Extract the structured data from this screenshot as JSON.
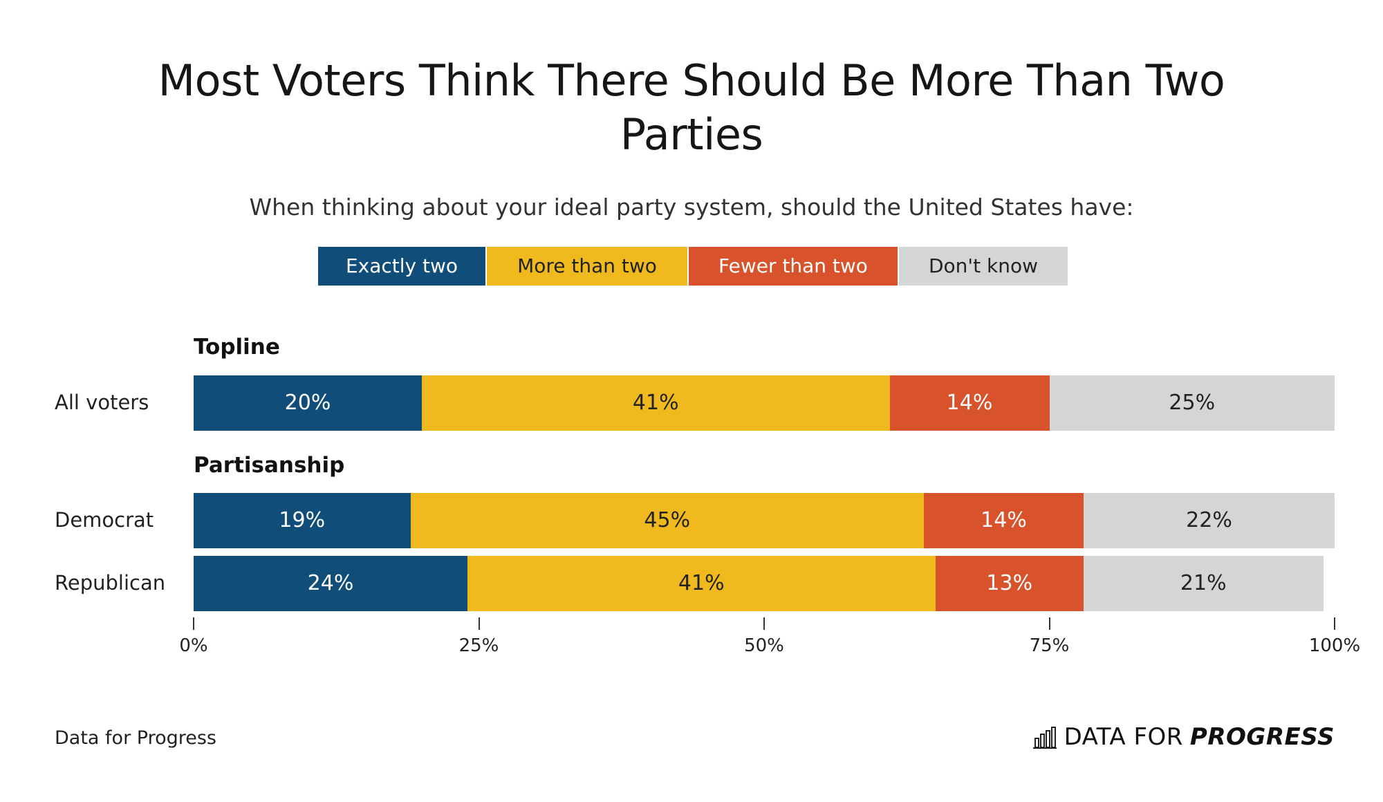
{
  "title_line1": "Most Voters Think There Should Be More Than Two",
  "title_line2": "Parties",
  "subtitle": "When thinking about your ideal party system, should the United States have:",
  "source": "Data for Progress",
  "brand": {
    "part1": "DATA FOR",
    "part2": "PROGRESS"
  },
  "chart_data": {
    "type": "bar",
    "orientation": "horizontal",
    "stacked": true,
    "xlim": [
      0,
      100
    ],
    "x_ticks": [
      "0%",
      "25%",
      "50%",
      "75%",
      "100%"
    ],
    "legend_position": "top",
    "series": [
      {
        "name": "Exactly two",
        "color": "#104e79",
        "text_color": "#ffffff"
      },
      {
        "name": "More than two",
        "color": "#f0b91e",
        "text_color": "#222222"
      },
      {
        "name": "Fewer than two",
        "color": "#d8522b",
        "text_color": "#ffffff"
      },
      {
        "name": "Don't know",
        "color": "#d4d5d6",
        "text_color": "#222222"
      }
    ],
    "groups": [
      {
        "label": "Topline",
        "rows": [
          {
            "label": "All voters",
            "values": [
              20,
              41,
              14,
              25
            ],
            "value_labels": [
              "20%",
              "41%",
              "14%",
              "25%"
            ]
          }
        ]
      },
      {
        "label": "Partisanship",
        "rows": [
          {
            "label": "Democrat",
            "values": [
              19,
              45,
              14,
              22
            ],
            "value_labels": [
              "19%",
              "45%",
              "14%",
              "22%"
            ]
          },
          {
            "label": "Republican",
            "values": [
              24,
              41,
              13,
              21
            ],
            "value_labels": [
              "24%",
              "41%",
              "13%",
              "21%"
            ]
          }
        ]
      }
    ]
  }
}
